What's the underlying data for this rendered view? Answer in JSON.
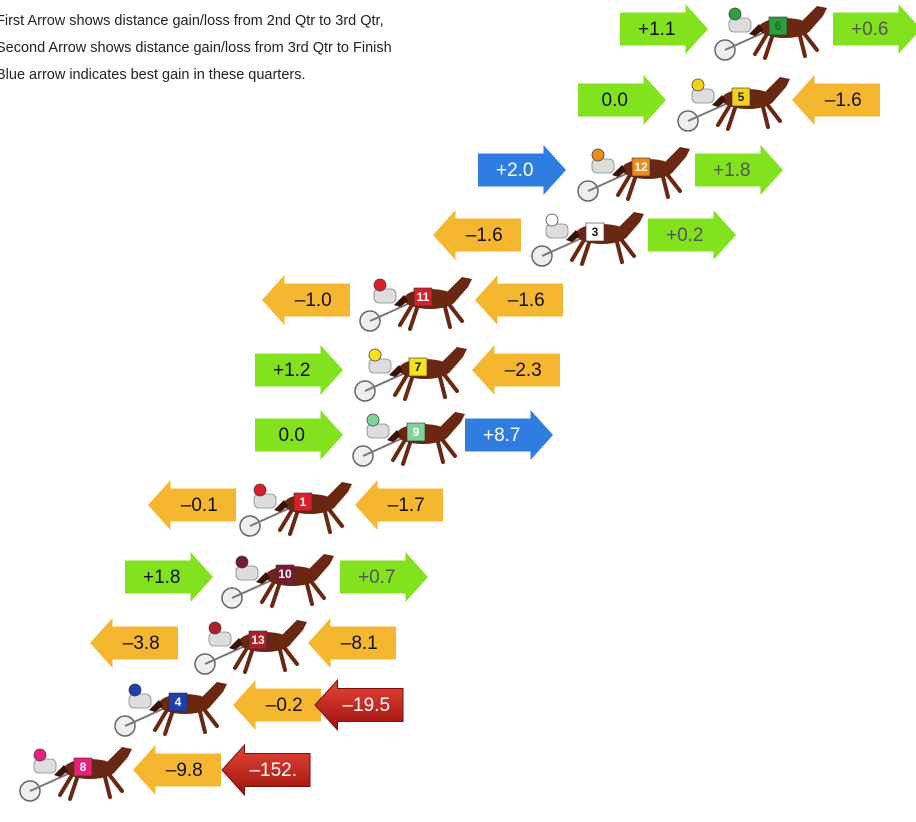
{
  "notes": [
    "First Arrow shows distance gain/loss from 2nd Qtr to 3rd Qtr,",
    "Second Arrow shows distance gain/loss from 3rd Qtr to Finish",
    "Blue arrow indicates best gain in these quarters."
  ],
  "rows": [
    {
      "number": "6",
      "cloth_color": "#2e9e3e",
      "number_color": "#1b6b28",
      "first": {
        "label": "+1.1",
        "direction": "right",
        "color": "green"
      },
      "second": {
        "label": "+0.6",
        "direction": "right",
        "color": "green"
      }
    },
    {
      "number": "5",
      "cloth_color": "#f2d21b",
      "number_color": "#222",
      "first": {
        "label": "0.0",
        "direction": "right",
        "color": "green"
      },
      "second": {
        "label": "–1.6",
        "direction": "left",
        "color": "orange"
      }
    },
    {
      "number": "12",
      "cloth_color": "#f08a1c",
      "number_color": "#fff",
      "first": {
        "label": "+2.0",
        "direction": "right",
        "color": "blue"
      },
      "second": {
        "label": "+1.8",
        "direction": "right",
        "color": "green"
      }
    },
    {
      "number": "3",
      "cloth_color": "#ffffff",
      "number_color": "#111",
      "first": {
        "label": "–1.6",
        "direction": "left",
        "color": "orange"
      },
      "second": {
        "label": "+0.2",
        "direction": "right",
        "color": "green"
      }
    },
    {
      "number": "11",
      "cloth_color": "#d7202a",
      "number_color": "#fff",
      "first": {
        "label": "–1.0",
        "direction": "left",
        "color": "orange"
      },
      "second": {
        "label": "–1.6",
        "direction": "left",
        "color": "orange"
      }
    },
    {
      "number": "7",
      "cloth_color": "#f5e11c",
      "number_color": "#111",
      "first": {
        "label": "+1.2",
        "direction": "right",
        "color": "green"
      },
      "second": {
        "label": "–2.3",
        "direction": "left",
        "color": "orange"
      }
    },
    {
      "number": "9",
      "cloth_color": "#7fd39a",
      "number_color": "#fff",
      "first": {
        "label": "0.0",
        "direction": "right",
        "color": "green"
      },
      "second": {
        "label": "+8.7",
        "direction": "right",
        "color": "blue"
      }
    },
    {
      "number": "1",
      "cloth_color": "#d7202a",
      "number_color": "#fff",
      "first": {
        "label": "–0.1",
        "direction": "left",
        "color": "orange"
      },
      "second": {
        "label": "–1.7",
        "direction": "left",
        "color": "orange"
      }
    },
    {
      "number": "10",
      "cloth_color": "#7a1830",
      "number_color": "#fff",
      "first": {
        "label": "+1.8",
        "direction": "right",
        "color": "green"
      },
      "second": {
        "label": "+0.7",
        "direction": "right",
        "color": "green"
      }
    },
    {
      "number": "13",
      "cloth_color": "#b01e2a",
      "number_color": "#fff",
      "first": {
        "label": "–3.8",
        "direction": "left",
        "color": "orange"
      },
      "second": {
        "label": "–8.1",
        "direction": "left",
        "color": "orange"
      }
    },
    {
      "number": "4",
      "cloth_color": "#1f3fae",
      "number_color": "#fff",
      "first": {
        "label": "–0.2",
        "direction": "left",
        "color": "orange"
      },
      "second": {
        "label": "–19.5",
        "direction": "left",
        "color": "red"
      }
    },
    {
      "number": "8",
      "cloth_color": "#e8207a",
      "number_color": "#fff",
      "first": {
        "label": "–9.8",
        "direction": "left",
        "color": "orange"
      },
      "second": {
        "label": "–152.",
        "direction": "left",
        "color": "red"
      }
    }
  ]
}
